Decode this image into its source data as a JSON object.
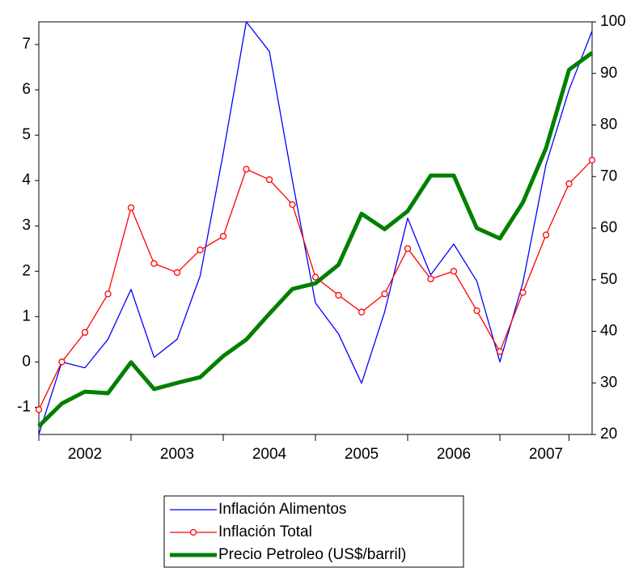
{
  "chart_data": {
    "type": "line",
    "categories": [
      "2002",
      null,
      null,
      null,
      "2003",
      null,
      null,
      null,
      "2004",
      null,
      null,
      null,
      "2005",
      null,
      null,
      null,
      "2006",
      null,
      null,
      null,
      "2007",
      null,
      null,
      null,
      null
    ],
    "series": [
      {
        "name": "Inflación Alimentos",
        "color": "#0000ff",
        "axis": "y",
        "values": [
          -1.6,
          0.0,
          -0.13,
          0.5,
          1.6,
          0.1,
          0.5,
          1.9,
          4.6,
          7.5,
          6.85,
          4.0,
          1.3,
          0.62,
          -0.47,
          1.1,
          3.17,
          1.92,
          2.6,
          1.78,
          0.0,
          1.75,
          4.35,
          6.0,
          7.3
        ]
      },
      {
        "name": "Inflación Total",
        "color": "#ff0000",
        "axis": "y",
        "markers": true,
        "values": [
          -1.05,
          0.0,
          0.65,
          1.5,
          3.4,
          2.17,
          1.97,
          2.47,
          2.77,
          4.25,
          4.02,
          3.47,
          1.87,
          1.47,
          1.1,
          1.5,
          2.5,
          1.83,
          2.0,
          1.13,
          0.23,
          1.53,
          2.8,
          3.93,
          4.45
        ]
      },
      {
        "name": "Precio Petroleo (US$/barril)",
        "color": "#008000",
        "axis": "y2",
        "width": 5,
        "values": [
          21.6,
          26,
          28.3,
          28,
          34,
          28.8,
          30,
          31.1,
          35.2,
          38.4,
          43.4,
          48.2,
          49.3,
          52.9,
          62.8,
          59.8,
          63.3,
          70.2,
          70.2,
          60,
          58,
          65,
          75.5,
          90.7,
          94
        ]
      }
    ],
    "ylim": [
      -1.6,
      7.5
    ],
    "yticks": [
      -1,
      0,
      1,
      2,
      3,
      4,
      5,
      6,
      7
    ],
    "y2lim": [
      20,
      100
    ],
    "y2ticks": [
      20,
      30,
      40,
      50,
      60,
      70,
      80,
      90,
      100
    ],
    "legend": "bottom"
  }
}
